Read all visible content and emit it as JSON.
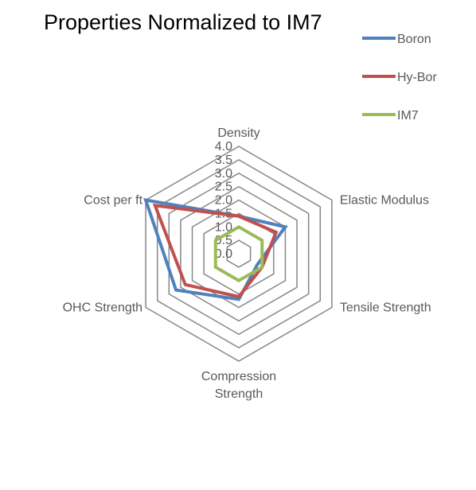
{
  "chart_data": {
    "type": "radar",
    "title": "Properties Normalized to IM7",
    "axes": [
      "Density",
      "Elastic Modulus",
      "Tensile Strength",
      "Compression Strength",
      "OHC Strength",
      "Cost per ft"
    ],
    "ticks": [
      "0.0",
      "0.5",
      "1.0",
      "1.5",
      "2.0",
      "2.5",
      "3.0",
      "3.5",
      "4.0"
    ],
    "rlim": [
      0,
      4
    ],
    "grid": true,
    "legend_position": "top-right",
    "series": [
      {
        "name": "Boron",
        "color": "#4F81BD",
        "values": [
          1.4,
          2.0,
          0.8,
          1.7,
          2.7,
          4.0
        ]
      },
      {
        "name": "Hy-Bor",
        "color": "#C0504D",
        "values": [
          1.4,
          1.6,
          1.0,
          1.6,
          2.3,
          3.6
        ]
      },
      {
        "name": "IM7",
        "color": "#9BBB59",
        "values": [
          1.0,
          1.0,
          1.0,
          1.0,
          1.0,
          1.0
        ]
      }
    ]
  }
}
